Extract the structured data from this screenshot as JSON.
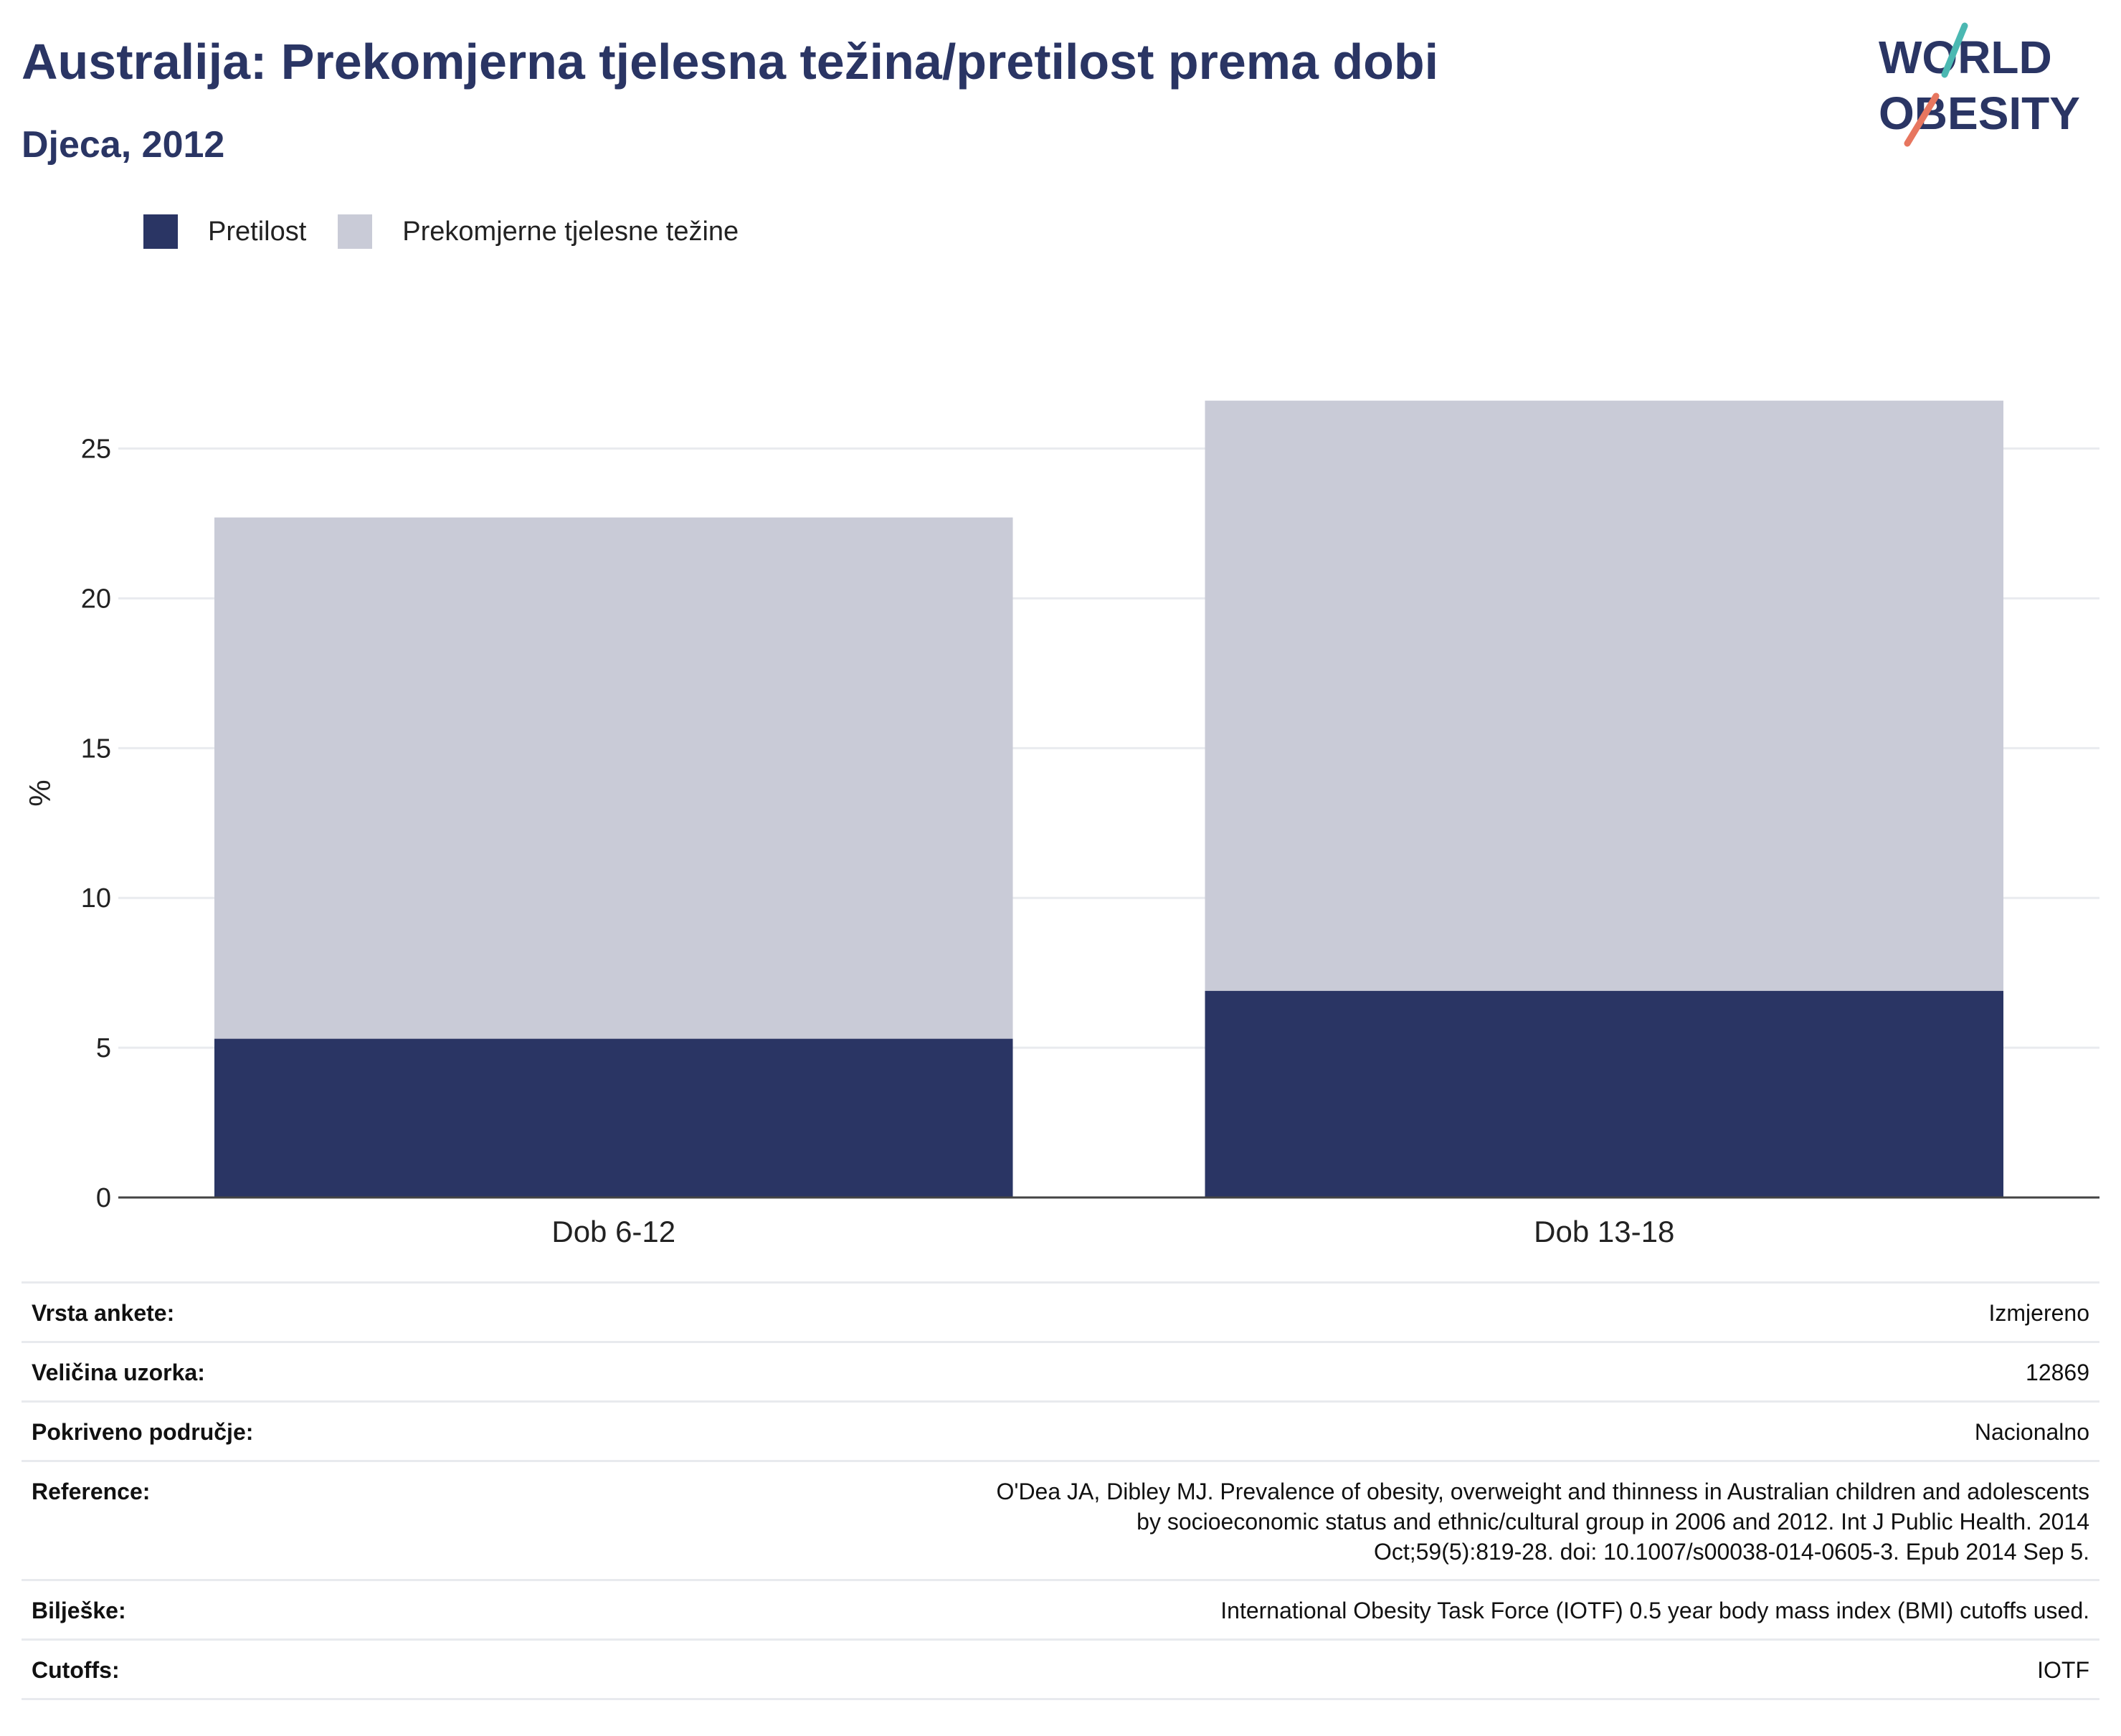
{
  "title": "Australija: Prekomjerna tjelesna težina/pretilost prema dobi",
  "subtitle": "Djeca, 2012",
  "logo": {
    "line1": "WORLD",
    "line2": "OBESITY",
    "colors": [
      "#2a3564",
      "#4bb8b2",
      "#e7765f"
    ]
  },
  "legend": [
    {
      "label": "Pretilost",
      "color": "#2a3564"
    },
    {
      "label": "Prekomjerne tjelesne težine",
      "color": "#c9cbd7"
    }
  ],
  "chart_data": {
    "type": "bar",
    "stacked": true,
    "categories": [
      "Dob 6-12",
      "Dob 13-18"
    ],
    "series": [
      {
        "name": "Pretilost",
        "values": [
          5.3,
          6.9
        ],
        "color": "#2a3564"
      },
      {
        "name": "Prekomjerne tjelesne težine",
        "values": [
          17.4,
          19.7
        ],
        "color": "#c9cbd7"
      }
    ],
    "ylabel": "%",
    "ylim": [
      0,
      27
    ],
    "yticks": [
      0,
      5,
      10,
      15,
      20,
      25
    ],
    "grid": true,
    "legend_position": "top-left"
  },
  "info": [
    {
      "key": "Vrsta ankete:",
      "value": "Izmjereno"
    },
    {
      "key": "Veličina uzorka:",
      "value": "12869"
    },
    {
      "key": "Pokriveno područje:",
      "value": "Nacionalno"
    },
    {
      "key": "Reference:",
      "value": "O'Dea JA, Dibley MJ. Prevalence of obesity, overweight and thinness in Australian children and adolescents by socioeconomic status and ethnic/cultural group in 2006 and 2012. Int J Public Health. 2014 Oct;59(5):819-28. doi: 10.1007/s00038-014-0605-3. Epub 2014 Sep 5."
    },
    {
      "key": "Bilješke:",
      "value": "International Obesity Task Force (IOTF) 0.5 year body mass index (BMI) cutoffs used."
    },
    {
      "key": "Cutoffs:",
      "value": "IOTF"
    }
  ]
}
